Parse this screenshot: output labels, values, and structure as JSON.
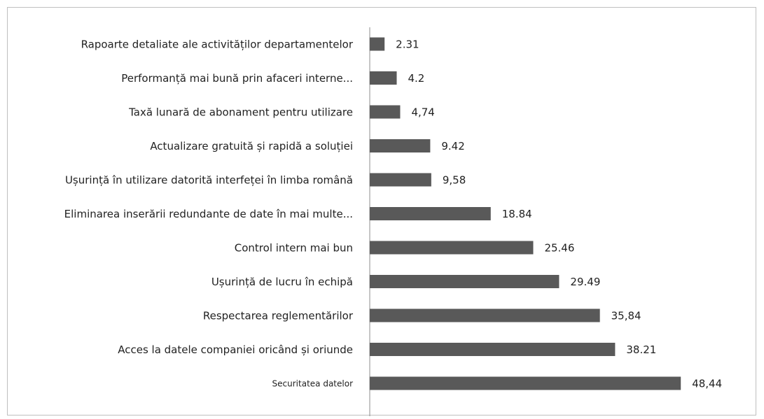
{
  "chart_data": {
    "type": "bar",
    "orientation": "horizontal",
    "title": "",
    "xlabel": "",
    "ylabel": "",
    "xlim": [
      0,
      50
    ],
    "grid": false,
    "legend": "none",
    "bar_color": "#595959",
    "categories": [
      "Rapoarte detaliate ale activităților departamentelor",
      "Performanță mai bună prin afaceri interne...",
      "Taxă lunară de abonament pentru utilizare",
      "Actualizare gratuită și rapidă a soluției",
      "Ușurință în utilizare datorită interfeței în limba română",
      "Eliminarea inserării redundante de date în mai multe...",
      "Control intern mai bun",
      "Ușurință de lucru în echipă",
      "Respectarea reglementărilor",
      "Acces la datele companiei oricând și oriunde",
      "Securitatea datelor"
    ],
    "values": [
      2.31,
      4.2,
      4.74,
      9.42,
      9.58,
      18.84,
      25.46,
      29.49,
      35.84,
      38.21,
      48.44
    ],
    "value_labels": [
      "2.31",
      "4.2",
      "4,74",
      "9.42",
      "9,58",
      "18.84",
      "25.46",
      "29.49",
      "35,84",
      "38.21",
      "48,44"
    ]
  }
}
